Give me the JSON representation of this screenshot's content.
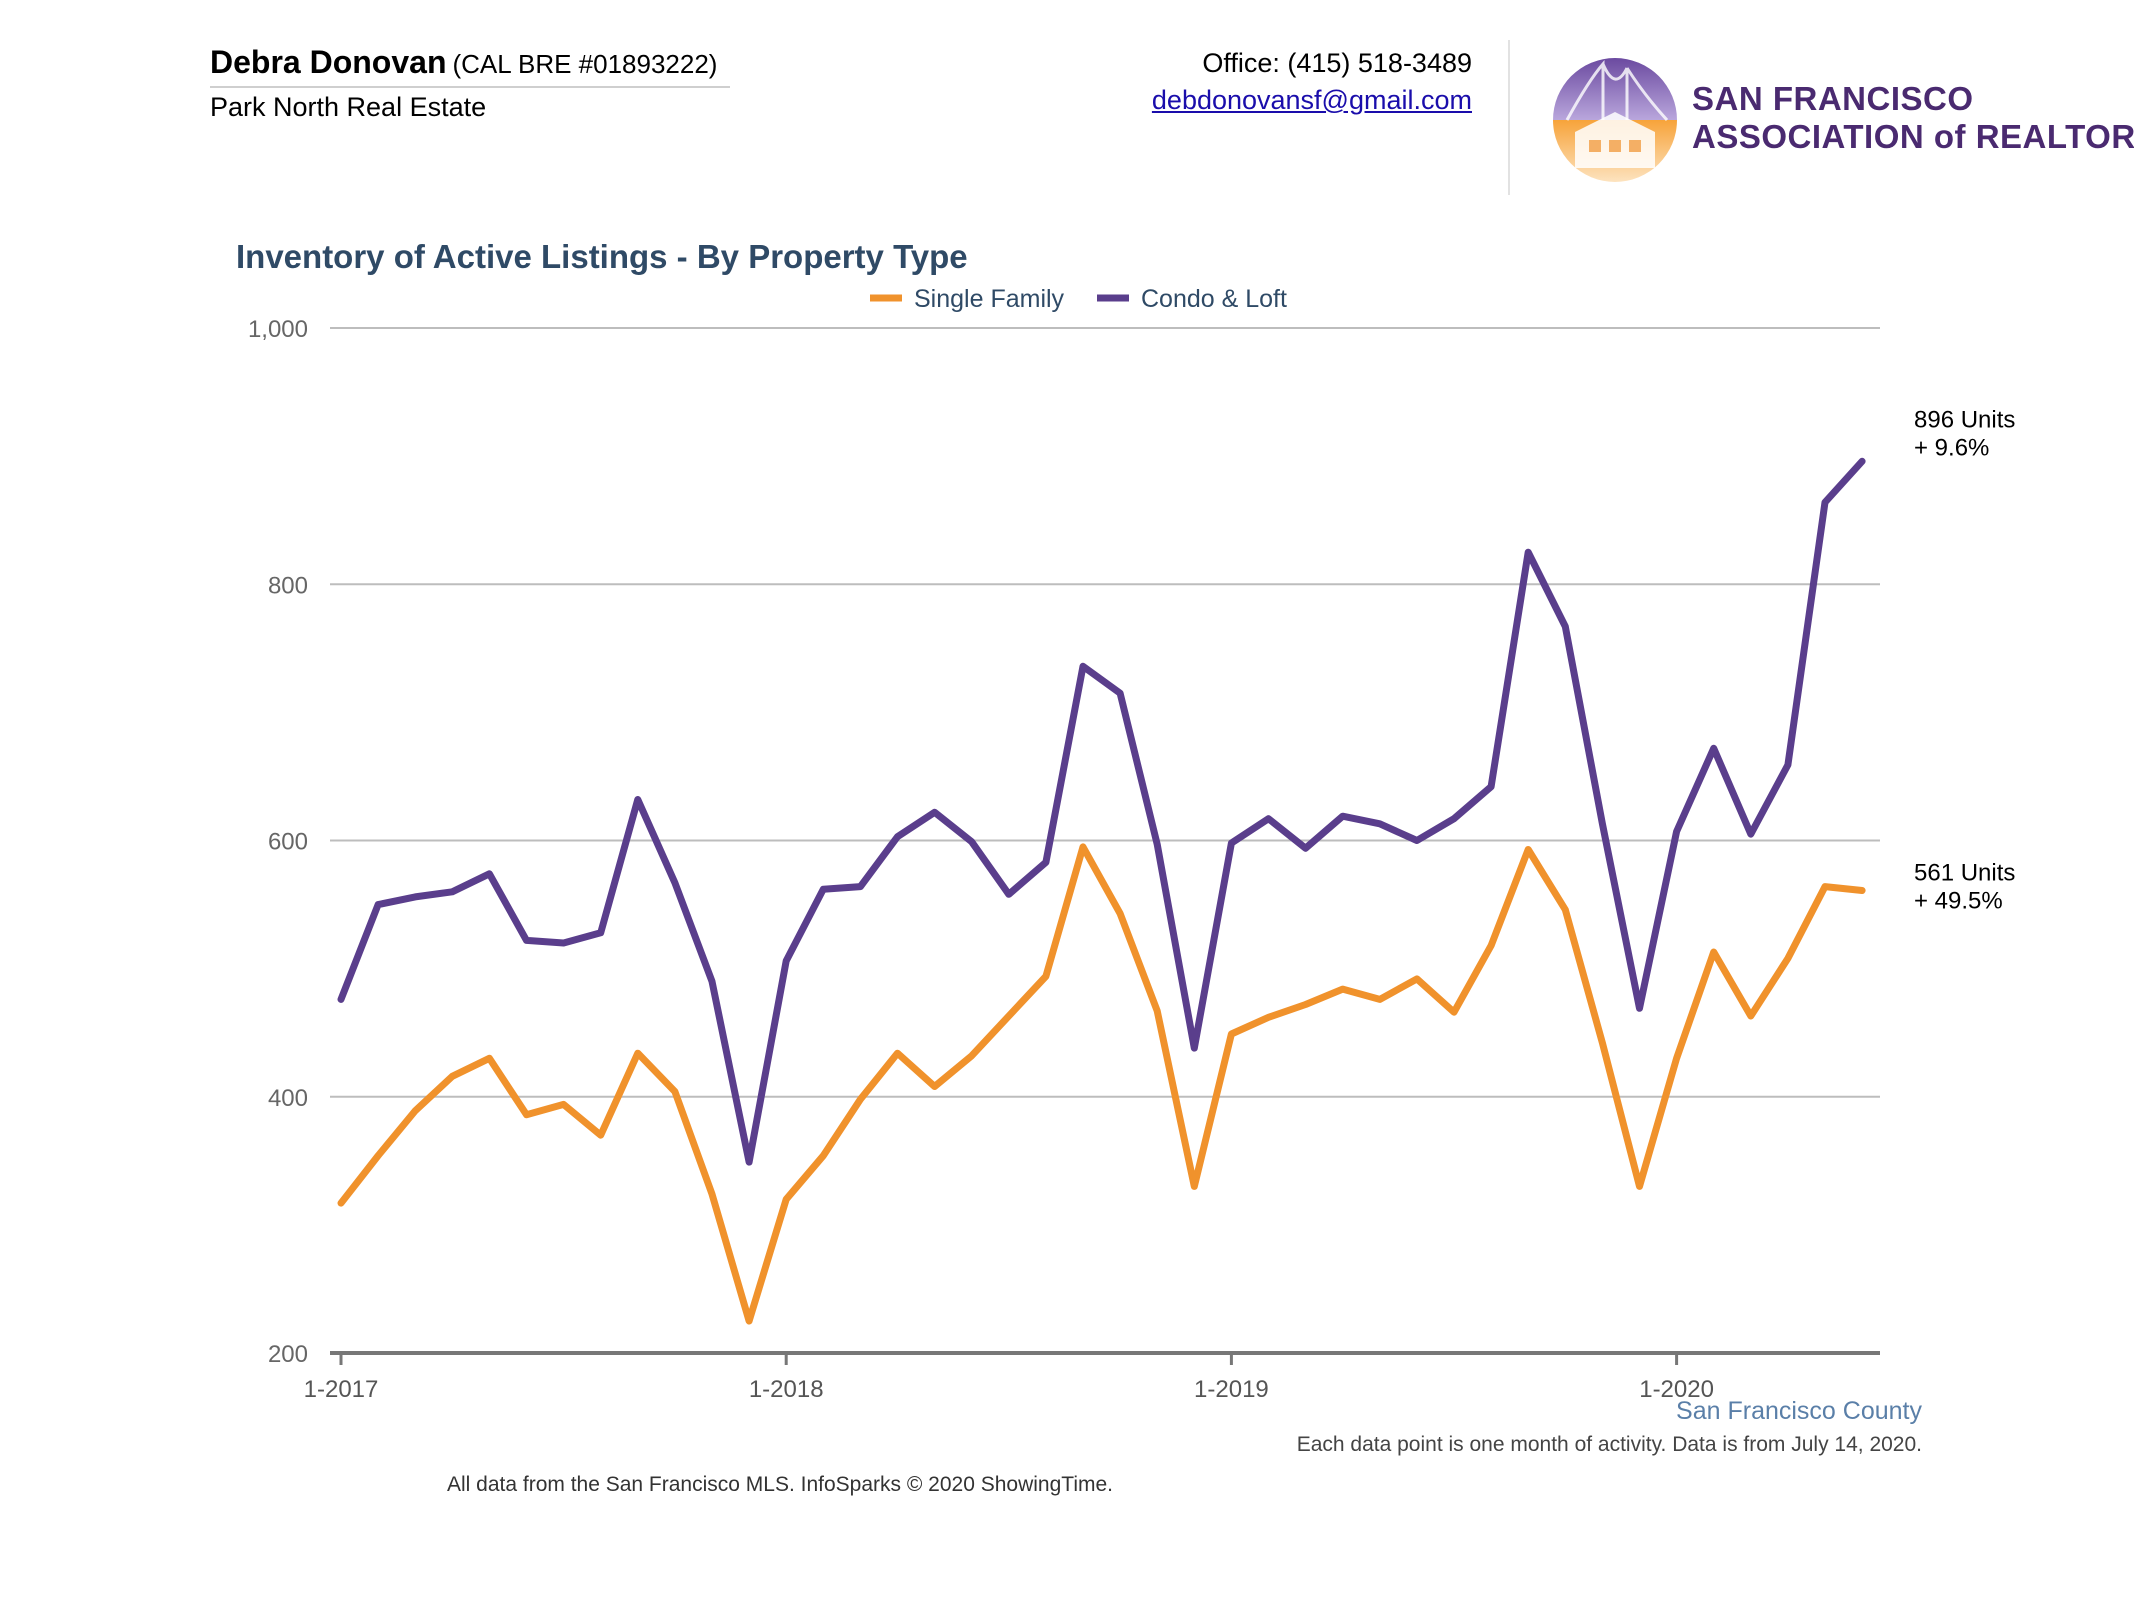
{
  "header": {
    "agent_name": "Debra Donovan",
    "agent_license": "(CAL BRE #01893222)",
    "company": "Park North Real Estate",
    "office": "Office: (415) 518-3489",
    "email": "debdonovansf@gmail.com",
    "logo_line_1": "SAN FRANCISCO",
    "logo_line_2": "ASSOCIATION of REALTORS®"
  },
  "footer": {
    "county": "San Francisco County",
    "note": "Each data point is one month of activity. Data is from July 14, 2020.",
    "source": "All data from the San Francisco MLS. InfoSparks © 2020 ShowingTime."
  },
  "colors": {
    "single_family": "#f0922c",
    "condo_loft": "#5a3e8c",
    "title": "#2f4a66",
    "grid": "#bdbdbd",
    "axis": "#777777"
  },
  "chart_data": {
    "type": "line",
    "title": "Inventory of Active Listings - By Property Type",
    "xlabel": "",
    "ylabel": "",
    "ylim": [
      200,
      1000
    ],
    "yticks": [
      200,
      400,
      600,
      800,
      1000
    ],
    "ytick_labels": [
      "200",
      "400",
      "600",
      "800",
      "1,000"
    ],
    "xlim": [
      "2017-01",
      "2020-06"
    ],
    "xtick_labels": [
      "1-2017",
      "1-2018",
      "1-2019",
      "1-2020"
    ],
    "xtick_positions": [
      "2017-01",
      "2018-01",
      "2019-01",
      "2020-01"
    ],
    "grid": true,
    "legend_position": "top-center",
    "x": [
      "2017-01",
      "2017-02",
      "2017-03",
      "2017-04",
      "2017-05",
      "2017-06",
      "2017-07",
      "2017-08",
      "2017-09",
      "2017-10",
      "2017-11",
      "2017-12",
      "2018-01",
      "2018-02",
      "2018-03",
      "2018-04",
      "2018-05",
      "2018-06",
      "2018-07",
      "2018-08",
      "2018-09",
      "2018-10",
      "2018-11",
      "2018-12",
      "2019-01",
      "2019-02",
      "2019-03",
      "2019-04",
      "2019-05",
      "2019-06",
      "2019-07",
      "2019-08",
      "2019-09",
      "2019-10",
      "2019-11",
      "2019-12",
      "2020-01",
      "2020-02",
      "2020-03",
      "2020-04",
      "2020-05",
      "2020-06"
    ],
    "series": [
      {
        "name": "Single Family",
        "color": "#f0922c",
        "values": [
          317,
          354,
          389,
          416,
          430,
          386,
          394,
          370,
          434,
          404,
          324,
          225,
          320,
          354,
          398,
          434,
          408,
          432,
          463,
          494,
          595,
          543,
          467,
          330,
          449,
          462,
          472,
          484,
          476,
          492,
          466,
          518,
          593,
          546,
          442,
          330,
          430,
          513,
          463,
          508,
          564,
          561
        ],
        "end_label": [
          "561 Units",
          "+ 49.5%"
        ]
      },
      {
        "name": "Condo & Loft",
        "color": "#5a3e8c",
        "values": [
          476,
          550,
          556,
          560,
          574,
          522,
          520,
          528,
          632,
          567,
          490,
          349,
          506,
          562,
          564,
          603,
          622,
          599,
          558,
          583,
          736,
          715,
          597,
          438,
          598,
          617,
          594,
          619,
          613,
          600,
          617,
          642,
          825,
          767,
          613,
          469,
          607,
          672,
          605,
          659,
          864,
          896
        ],
        "end_label": [
          "896 Units",
          "+ 9.6%"
        ]
      }
    ]
  }
}
